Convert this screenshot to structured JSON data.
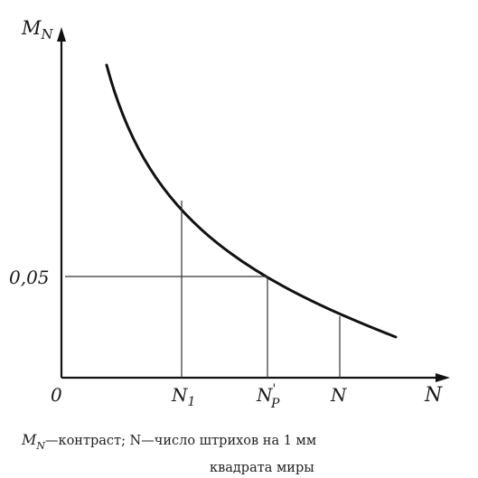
{
  "chart_data": {
    "type": "line",
    "y_axis_label": "M",
    "y_axis_label_sub": "N",
    "x_axis_label": "N",
    "origin_label": "0",
    "y_marker_label": "0,05",
    "x_marker_labels": [
      {
        "main": "N",
        "sub": "1",
        "sup": ""
      },
      {
        "main": "N",
        "sub": "P",
        "sup": "'"
      },
      {
        "main": "N",
        "sub": "",
        "sup": ""
      }
    ],
    "grid": false,
    "legend": "none",
    "line_color": "#111111"
  },
  "caption": {
    "line1_m": "M",
    "line1_sub": "N",
    "line1_rest": "—контраст;  N—число    штрихов  на  1  мм",
    "line2": "квадрата миры"
  }
}
